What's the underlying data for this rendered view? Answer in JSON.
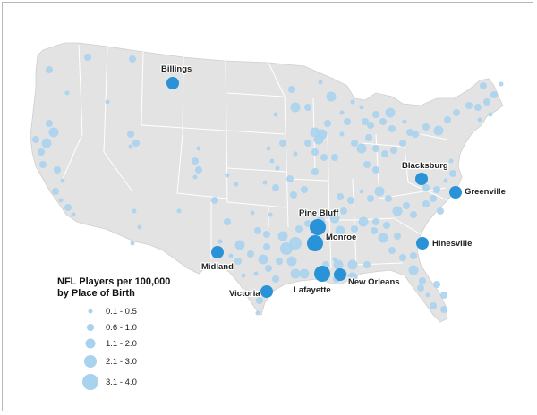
{
  "colors": {
    "land": "#e3e3e3",
    "state_border": "#ffffff",
    "bubble_light": "#a9d2ee",
    "bubble_dark": "#2a92d6",
    "label": "#222222"
  },
  "legend": {
    "title_line1": "NFL Players per 100,000",
    "title_line2": "by Place of Birth",
    "classes": [
      "0.1 - 0.5",
      "0.6 - 1.0",
      "1.1 - 2.0",
      "2.1 - 3.0",
      "3.1 - 4.0"
    ]
  },
  "highlighted_cities": [
    {
      "name": "Billings"
    },
    {
      "name": "Blacksburg"
    },
    {
      "name": "Greenville"
    },
    {
      "name": "Hinesville"
    },
    {
      "name": "Pine Bluff"
    },
    {
      "name": "Monroe"
    },
    {
      "name": "Midland"
    },
    {
      "name": "Lafayette"
    },
    {
      "name": "New Orleans"
    },
    {
      "name": "Victoria"
    }
  ]
}
